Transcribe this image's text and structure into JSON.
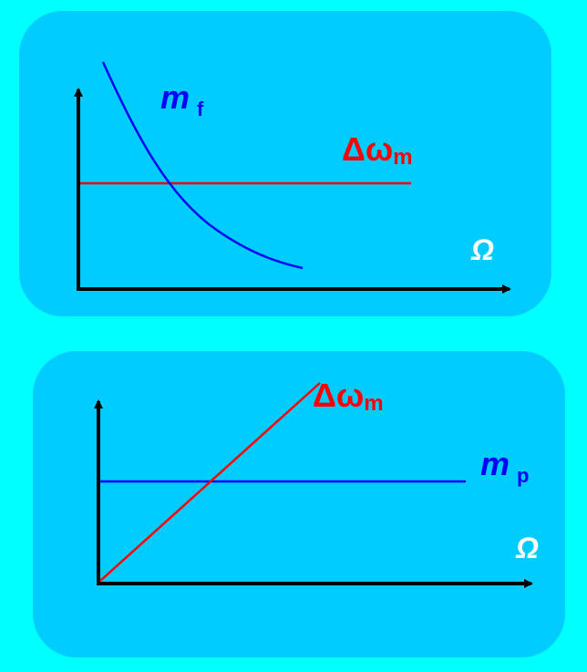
{
  "colors": {
    "page_background": "#00FFFF",
    "panel_background": "#00CCFF",
    "axis": "#000000",
    "blue_curve": "#0000FF",
    "red_curve": "#FF0000"
  },
  "top_plot": {
    "x_axis_label": "Ω",
    "blue_label": {
      "main": "m",
      "sub": "f"
    },
    "red_label": {
      "main": "Δω",
      "sub": "m"
    },
    "blue_curve_shape": "decreasing",
    "red_curve_shape": "constant"
  },
  "bottom_plot": {
    "x_axis_label": "Ω",
    "blue_label": {
      "main": "m",
      "sub": "p"
    },
    "red_label": {
      "main": "Δω",
      "sub": "m"
    },
    "blue_curve_shape": "constant",
    "red_curve_shape": "linear increasing"
  }
}
